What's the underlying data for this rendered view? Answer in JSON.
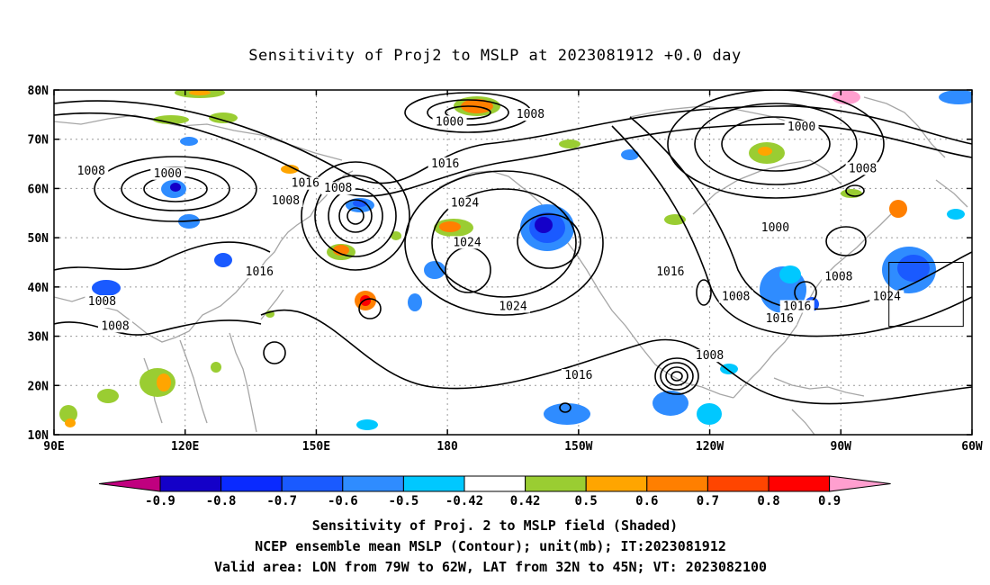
{
  "title": "Sensitivity of Proj2 to MSLP at 2023081912 +0.0 day",
  "map": {
    "lon_range": [
      90,
      300
    ],
    "lat_range": [
      10,
      80
    ],
    "lon_ticks": [
      {
        "lon": 90,
        "label": "90E"
      },
      {
        "lon": 120,
        "label": "120E"
      },
      {
        "lon": 150,
        "label": "150E"
      },
      {
        "lon": 180,
        "label": "180"
      },
      {
        "lon": 210,
        "label": "150W"
      },
      {
        "lon": 240,
        "label": "120W"
      },
      {
        "lon": 270,
        "label": "90W"
      },
      {
        "lon": 300,
        "label": "60W"
      }
    ],
    "lat_ticks": [
      {
        "lat": 10,
        "label": "10N"
      },
      {
        "lat": 20,
        "label": "20N"
      },
      {
        "lat": 30,
        "label": "30N"
      },
      {
        "lat": 40,
        "label": "40N"
      },
      {
        "lat": 50,
        "label": "50N"
      },
      {
        "lat": 60,
        "label": "60N"
      },
      {
        "lat": 70,
        "label": "70N"
      },
      {
        "lat": 80,
        "label": "80N"
      }
    ],
    "grid": true,
    "valid_box": {
      "lon": [
        281,
        298
      ],
      "lat": [
        32,
        45
      ]
    },
    "contour_labels": [
      {
        "text": "1000",
        "lon": 180.5,
        "lat": 73
      },
      {
        "text": "1008",
        "lon": 199,
        "lat": 74.5
      },
      {
        "text": "1000",
        "lon": 261,
        "lat": 72
      },
      {
        "text": "1008",
        "lon": 98.5,
        "lat": 63
      },
      {
        "text": "1000",
        "lon": 116,
        "lat": 62.5
      },
      {
        "text": "1016",
        "lon": 147.5,
        "lat": 60.5
      },
      {
        "text": "1008",
        "lon": 155,
        "lat": 59.5
      },
      {
        "text": "1008",
        "lon": 143,
        "lat": 57
      },
      {
        "text": "1016",
        "lon": 179.5,
        "lat": 64.5
      },
      {
        "text": "1024",
        "lon": 184,
        "lat": 56.5
      },
      {
        "text": "1024",
        "lon": 184.5,
        "lat": 48.5
      },
      {
        "text": "1016",
        "lon": 137,
        "lat": 42.5
      },
      {
        "text": "1008",
        "lon": 275,
        "lat": 63.5
      },
      {
        "text": "1000",
        "lon": 255,
        "lat": 51.5
      },
      {
        "text": "1016",
        "lon": 231,
        "lat": 42.5
      },
      {
        "text": "1008",
        "lon": 246,
        "lat": 37.5
      },
      {
        "text": "1008",
        "lon": 269.5,
        "lat": 41.5
      },
      {
        "text": "1024",
        "lon": 280.5,
        "lat": 37.5
      },
      {
        "text": "1016",
        "lon": 260,
        "lat": 35.5
      },
      {
        "text": "1016",
        "lon": 256,
        "lat": 33
      },
      {
        "text": "1024",
        "lon": 195,
        "lat": 35.5
      },
      {
        "text": "1008",
        "lon": 101,
        "lat": 36.5
      },
      {
        "text": "1008",
        "lon": 104,
        "lat": 31.5
      },
      {
        "text": "1008",
        "lon": 240,
        "lat": 25.5
      },
      {
        "text": "1016",
        "lon": 210,
        "lat": 21.5
      }
    ]
  },
  "colorbar": {
    "labels": [
      "-0.9",
      "-0.8",
      "-0.7",
      "-0.6",
      "-0.5",
      "-0.42",
      "0.42",
      "0.5",
      "0.6",
      "0.7",
      "0.8",
      "0.9"
    ],
    "colors": [
      "#c0007f",
      "#1400c8",
      "#0a2aff",
      "#1a5aff",
      "#2f8cff",
      "#00c8ff",
      "#ffffff",
      "#9acd32",
      "#ffa500",
      "#ff7f00",
      "#ff4500",
      "#ff0000",
      "#ff9fcf"
    ]
  },
  "caption": {
    "line1": "Sensitivity of Proj. 2 to MSLP field (Shaded)",
    "line2": "NCEP ensemble mean MSLP (Contour); unit(mb); IT:2023081912",
    "line3": "Valid area: LON from 79W to 62W, LAT from 32N to 45N; VT: 2023082100"
  }
}
